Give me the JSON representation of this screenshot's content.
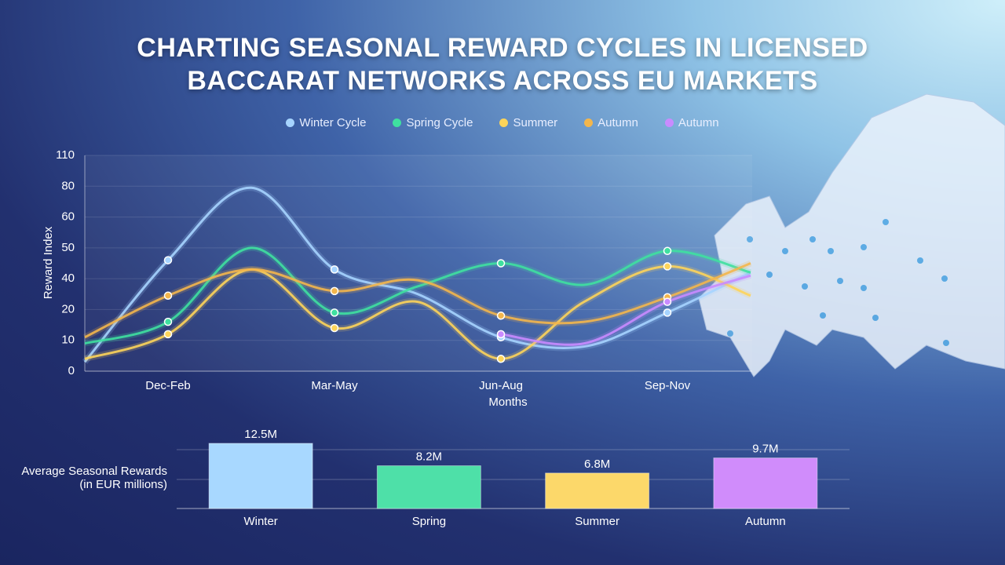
{
  "chart_data": [
    {
      "type": "line",
      "title": "CHARTING SEASONAL REWARD CYCLES IN LICENSED BACCARAT NETWORKS ACROSS EU MARKETS",
      "y_label": "Reward Index",
      "x_label": "Months",
      "categories": [
        null,
        "Dec-Feb",
        null,
        "Mar-May",
        null,
        "Jun-Aug",
        null,
        "Sep-Nov",
        null
      ],
      "ylim": [
        0,
        110
      ],
      "yticks": [
        0,
        10,
        20,
        40,
        50,
        60,
        80,
        110
      ],
      "grid": true,
      "series": [
        {
          "name": "Winter Cycle",
          "color": "#a6d4ff",
          "values": [
            3,
            46,
            79,
            43,
            30,
            11,
            8,
            19,
            42
          ]
        },
        {
          "name": "Spring Cycle",
          "color": "#3fe0a0",
          "values": [
            9,
            16,
            50,
            19,
            35,
            45,
            36,
            49,
            42
          ]
        },
        {
          "name": "Summer",
          "color": "#fdd45a",
          "values": [
            4,
            12,
            43,
            14,
            25,
            4,
            25,
            44,
            29
          ]
        },
        {
          "name": "Autumn",
          "color": "#f3b64c",
          "values": [
            11,
            29,
            43,
            32,
            39,
            18,
            16,
            28,
            45
          ]
        },
        {
          "name": "Autumn",
          "color": "#c98bff",
          "values": [
            null,
            null,
            null,
            null,
            null,
            12,
            9,
            25,
            41
          ]
        }
      ]
    },
    {
      "type": "bar",
      "y_label": [
        "Average Seasonal Rewards",
        "(in EUR millions)"
      ],
      "categories": [
        "Winter",
        "Spring",
        "Summer",
        "Autumn"
      ],
      "values": [
        12.5,
        8.2,
        6.8,
        9.7
      ],
      "value_labels": [
        "12.5M",
        "8.2M",
        "6.8M",
        "9.7M"
      ],
      "colors": [
        "#a8d8ff",
        "#4ee0a8",
        "#fcd86a",
        "#d08cfb"
      ],
      "ylim": [
        0,
        14
      ]
    }
  ]
}
